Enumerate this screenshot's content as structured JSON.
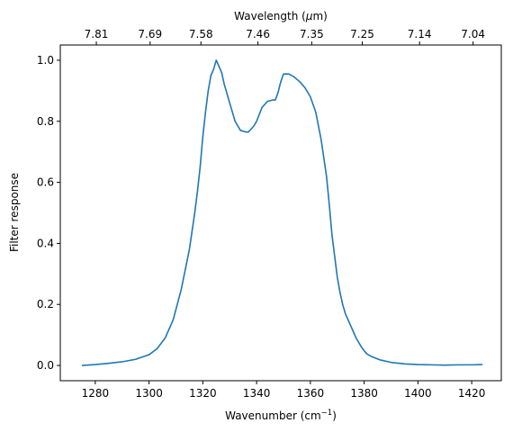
{
  "chart_data": {
    "type": "line",
    "xlabel": "Wavenumber (cm",
    "xlabel_sup": "−1",
    "xlabel_end": ")",
    "ylabel": "Filter response",
    "top_xlabel": "Wavelength (",
    "top_xlabel_mu": "μ",
    "top_xlabel_end": "m)",
    "xlim": [
      1267,
      1431
    ],
    "ylim": [
      -0.05,
      1.05
    ],
    "x_ticks": [
      1280,
      1300,
      1320,
      1340,
      1360,
      1380,
      1400,
      1420
    ],
    "x_tick_labels": [
      "1280",
      "1300",
      "1320",
      "1340",
      "1360",
      "1380",
      "1400",
      "1420"
    ],
    "y_ticks": [
      0.0,
      0.2,
      0.4,
      0.6,
      0.8,
      1.0
    ],
    "y_tick_labels": [
      "0.0",
      "0.2",
      "0.4",
      "0.6",
      "0.8",
      "1.0"
    ],
    "top_ticks": [
      {
        "label": "7.81",
        "wavenumber": 1280.4
      },
      {
        "label": "7.69",
        "wavenumber": 1300.4
      },
      {
        "label": "7.58",
        "wavenumber": 1319.3
      },
      {
        "label": "7.46",
        "wavenumber": 1340.5
      },
      {
        "label": "7.35",
        "wavenumber": 1360.5
      },
      {
        "label": "7.25",
        "wavenumber": 1379.3
      },
      {
        "label": "7.14",
        "wavenumber": 1400.6
      },
      {
        "label": "7.04",
        "wavenumber": 1420.5
      }
    ],
    "series": [
      {
        "color": "#1f77b4",
        "x": [
          1275,
          1280,
          1285,
          1290,
          1295,
          1300,
          1303,
          1306,
          1309,
          1312,
          1315,
          1317,
          1318,
          1319,
          1320,
          1321,
          1322,
          1323,
          1324,
          1325,
          1326,
          1327,
          1328,
          1330,
          1332,
          1334,
          1336,
          1337,
          1338,
          1339,
          1340,
          1342,
          1344,
          1346,
          1347,
          1348,
          1349,
          1350,
          1352,
          1354,
          1356,
          1358,
          1360,
          1362,
          1364,
          1366,
          1367,
          1368,
          1369,
          1370,
          1371,
          1372,
          1373,
          1374,
          1375,
          1376,
          1377,
          1378,
          1379,
          1380,
          1381,
          1383,
          1386,
          1390,
          1395,
          1400,
          1405,
          1410,
          1415,
          1420,
          1424
        ],
        "y": [
          0.0,
          0.003,
          0.007,
          0.012,
          0.02,
          0.035,
          0.055,
          0.09,
          0.15,
          0.25,
          0.38,
          0.5,
          0.57,
          0.65,
          0.75,
          0.83,
          0.9,
          0.95,
          0.97,
          1.0,
          0.98,
          0.96,
          0.92,
          0.86,
          0.8,
          0.77,
          0.765,
          0.765,
          0.775,
          0.785,
          0.8,
          0.845,
          0.865,
          0.87,
          0.87,
          0.895,
          0.93,
          0.955,
          0.955,
          0.945,
          0.93,
          0.91,
          0.88,
          0.83,
          0.74,
          0.62,
          0.53,
          0.43,
          0.36,
          0.29,
          0.24,
          0.2,
          0.17,
          0.15,
          0.13,
          0.11,
          0.09,
          0.075,
          0.06,
          0.048,
          0.038,
          0.028,
          0.018,
          0.01,
          0.005,
          0.003,
          0.002,
          0.001,
          0.002,
          0.002,
          0.003
        ]
      }
    ]
  }
}
